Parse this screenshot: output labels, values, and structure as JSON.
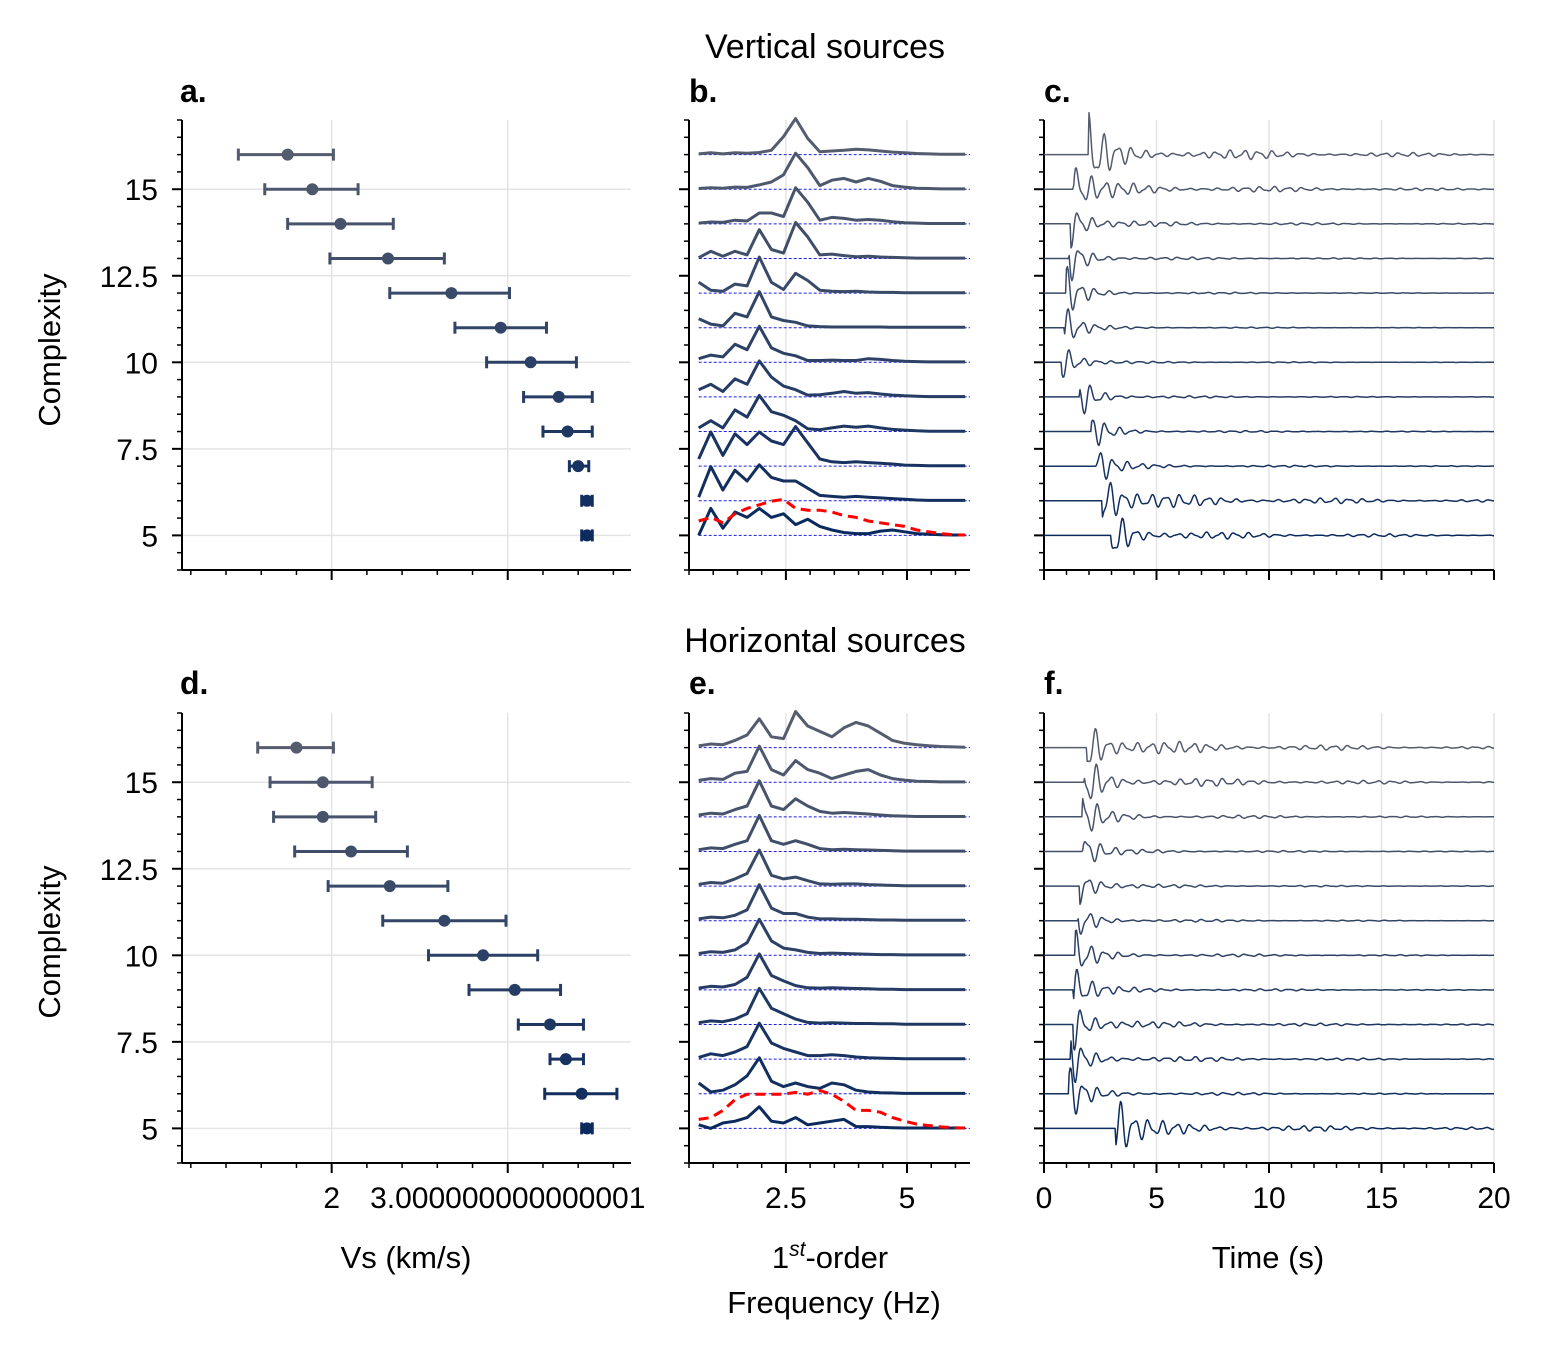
{
  "figure": {
    "top_title": "Vertical sources",
    "bottom_title": "Horizontal sources",
    "panel_labels": [
      "a.",
      "b.",
      "c.",
      "d.",
      "e.",
      "f."
    ],
    "ylabel": "Complexity",
    "xlabel_vs": "Vs (km/s)",
    "xlabel_freq_base": "1",
    "xlabel_freq_sup": "st",
    "xlabel_freq_rest": "-order",
    "xlabel_freq_line2": "Frequency (Hz)",
    "xlabel_time": "Time (s)",
    "colors": {
      "light": "#545c6e",
      "dark": "#0b2a5e",
      "reference": "#ff0000",
      "baseline": "#1f1fe0",
      "grid": "#e4e4e4"
    }
  },
  "chart_data": [
    {
      "panel": "a.",
      "type": "scatter",
      "subtype": "errorbar-horizontal",
      "xlabel": "Vs (km/s)",
      "ylabel": "Complexity",
      "xlim": [
        1.15,
        3.7
      ],
      "ylim": [
        4,
        17
      ],
      "xticks": [
        2,
        3
      ],
      "yticks": [
        5,
        7.5,
        10,
        12.5,
        15
      ],
      "grid": true,
      "y": [
        16,
        15,
        14,
        13,
        12,
        11,
        10,
        9,
        8,
        7,
        6,
        5
      ],
      "x": [
        1.75,
        1.89,
        2.05,
        2.32,
        2.68,
        2.96,
        3.13,
        3.29,
        3.34,
        3.4,
        3.45,
        3.45
      ],
      "xerr_low": [
        1.47,
        1.62,
        1.75,
        1.99,
        2.33,
        2.7,
        2.88,
        3.09,
        3.2,
        3.35,
        3.42,
        3.42
      ],
      "xerr_high": [
        2.01,
        2.15,
        2.35,
        2.64,
        3.01,
        3.22,
        3.39,
        3.48,
        3.48,
        3.46,
        3.48,
        3.48
      ]
    },
    {
      "panel": "b.",
      "type": "line",
      "subtitle": "Vertical sources",
      "xlabel": "1st-order Frequency (Hz)",
      "xlim": [
        0.5,
        6.3
      ],
      "xticks": [
        2.5,
        5
      ],
      "offsets": [
        16,
        15,
        14,
        13,
        12,
        11,
        10,
        9,
        8,
        7,
        6,
        5
      ],
      "x": [
        0.7,
        0.95,
        1.2,
        1.45,
        1.7,
        1.95,
        2.2,
        2.45,
        2.7,
        2.95,
        3.2,
        3.45,
        3.7,
        3.95,
        4.2,
        4.45,
        4.7,
        4.95,
        5.2,
        5.45,
        5.7,
        5.95,
        6.2
      ],
      "series": [
        {
          "offset": 16,
          "values": [
            0.02,
            0.05,
            0.02,
            0.05,
            0.04,
            0.06,
            0.12,
            0.5,
            1.0,
            0.45,
            0.08,
            0.1,
            0.12,
            0.15,
            0.13,
            0.1,
            0.07,
            0.05,
            0.03,
            0.02,
            0.01,
            0.01,
            0.01
          ]
        },
        {
          "offset": 15,
          "values": [
            0.02,
            0.04,
            0.03,
            0.06,
            0.05,
            0.12,
            0.2,
            0.4,
            1.0,
            0.6,
            0.1,
            0.25,
            0.3,
            0.2,
            0.3,
            0.22,
            0.1,
            0.06,
            0.03,
            0.02,
            0.01,
            0.01,
            0.01
          ]
        },
        {
          "offset": 14,
          "values": [
            0.02,
            0.05,
            0.04,
            0.1,
            0.08,
            0.3,
            0.3,
            0.2,
            1.0,
            0.6,
            0.1,
            0.18,
            0.15,
            0.1,
            0.12,
            0.1,
            0.06,
            0.03,
            0.02,
            0.01,
            0.01,
            0.01,
            0.01
          ]
        },
        {
          "offset": 13,
          "values": [
            0.02,
            0.2,
            0.06,
            0.2,
            0.1,
            0.8,
            0.25,
            0.15,
            1.0,
            0.6,
            0.1,
            0.12,
            0.08,
            0.05,
            0.06,
            0.04,
            0.03,
            0.02,
            0.01,
            0.01,
            0.01,
            0.01,
            0.01
          ]
        },
        {
          "offset": 12,
          "values": [
            0.3,
            0.08,
            0.05,
            0.25,
            0.2,
            1.0,
            0.3,
            0.1,
            0.55,
            0.35,
            0.08,
            0.05,
            0.04,
            0.05,
            0.03,
            0.02,
            0.02,
            0.01,
            0.01,
            0.01,
            0.01,
            0.01,
            0.01
          ]
        },
        {
          "offset": 11,
          "values": [
            0.25,
            0.1,
            0.05,
            0.4,
            0.3,
            1.0,
            0.3,
            0.2,
            0.15,
            0.05,
            0.03,
            0.02,
            0.02,
            0.02,
            0.02,
            0.02,
            0.01,
            0.01,
            0.01,
            0.01,
            0.01,
            0.01,
            0.01
          ]
        },
        {
          "offset": 10,
          "values": [
            0.1,
            0.2,
            0.15,
            0.5,
            0.35,
            1.0,
            0.4,
            0.25,
            0.18,
            0.05,
            0.05,
            0.06,
            0.05,
            0.05,
            0.1,
            0.08,
            0.05,
            0.03,
            0.02,
            0.01,
            0.01,
            0.01,
            0.01
          ]
        },
        {
          "offset": 9,
          "values": [
            0.2,
            0.35,
            0.15,
            0.5,
            0.35,
            1.0,
            0.55,
            0.3,
            0.2,
            0.05,
            0.06,
            0.1,
            0.15,
            0.1,
            0.12,
            0.08,
            0.05,
            0.03,
            0.02,
            0.01,
            0.01,
            0.01,
            0.01
          ]
        },
        {
          "offset": 8,
          "values": [
            0.1,
            0.3,
            0.1,
            0.6,
            0.4,
            1.0,
            0.55,
            0.45,
            0.3,
            0.08,
            0.05,
            0.1,
            0.15,
            0.12,
            0.15,
            0.1,
            0.06,
            0.04,
            0.02,
            0.01,
            0.01,
            0.01,
            0.01
          ]
        },
        {
          "offset": 7,
          "values": [
            0.2,
            0.95,
            0.3,
            0.9,
            0.6,
            0.95,
            0.7,
            0.6,
            1.1,
            0.65,
            0.2,
            0.12,
            0.1,
            0.12,
            0.1,
            0.08,
            0.06,
            0.03,
            0.02,
            0.01,
            0.01,
            0.01,
            0.01
          ]
        },
        {
          "offset": 6,
          "values": [
            0.1,
            0.95,
            0.3,
            0.85,
            0.55,
            1.0,
            0.65,
            0.55,
            0.55,
            0.35,
            0.15,
            0.12,
            0.1,
            0.12,
            0.1,
            0.08,
            0.06,
            0.04,
            0.02,
            0.01,
            0.01,
            0.01,
            0.01
          ]
        },
        {
          "offset": 5,
          "values": [
            0.0,
            0.75,
            0.2,
            0.65,
            0.5,
            0.75,
            0.5,
            0.6,
            0.3,
            0.45,
            0.25,
            0.15,
            0.08,
            0.05,
            0.05,
            0.12,
            0.15,
            0.1,
            0.05,
            0.03,
            0.02,
            0.01,
            0.01
          ]
        }
      ],
      "reference": {
        "offset": 5,
        "values": [
          0.4,
          0.5,
          0.35,
          0.6,
          0.75,
          0.85,
          0.95,
          1.0,
          0.75,
          0.7,
          0.7,
          0.65,
          0.55,
          0.5,
          0.4,
          0.35,
          0.3,
          0.25,
          0.15,
          0.1,
          0.05,
          0.02,
          0.01
        ]
      }
    },
    {
      "panel": "c.",
      "type": "line",
      "xlim": [
        0,
        20
      ],
      "xticks": [
        0,
        5,
        10,
        15,
        20
      ],
      "offsets": [
        16,
        15,
        14,
        13,
        12,
        11,
        10,
        9,
        8,
        7,
        6,
        5
      ],
      "onset_s": [
        2.0,
        1.3,
        1.2,
        1.1,
        1.0,
        0.9,
        0.8,
        1.6,
        2.1,
        2.3,
        2.6,
        3.0
      ],
      "peak_amplitude": [
        1.0,
        0.8,
        0.7,
        0.8,
        0.8,
        0.7,
        0.6,
        0.7,
        0.6,
        0.7,
        1.0,
        1.0
      ],
      "coda_amplitude": [
        0.35,
        0.25,
        0.12,
        0.08,
        0.06,
        0.05,
        0.05,
        0.06,
        0.07,
        0.08,
        0.3,
        0.2
      ]
    },
    {
      "panel": "d.",
      "type": "scatter",
      "subtype": "errorbar-horizontal",
      "xlabel": "Vs (km/s)",
      "ylabel": "Complexity",
      "xlim": [
        1.15,
        3.7
      ],
      "ylim": [
        4,
        17
      ],
      "xticks": [
        2,
        3
      ],
      "yticks": [
        5,
        7.5,
        10,
        12.5,
        15
      ],
      "grid": true,
      "y": [
        16,
        15,
        14,
        13,
        12,
        11,
        10,
        9,
        8,
        7,
        6,
        5
      ],
      "x": [
        1.8,
        1.95,
        1.95,
        2.11,
        2.33,
        2.64,
        2.86,
        3.04,
        3.24,
        3.33,
        3.42,
        3.45
      ],
      "xerr_low": [
        1.58,
        1.65,
        1.67,
        1.79,
        1.98,
        2.29,
        2.55,
        2.78,
        3.06,
        3.24,
        3.21,
        3.42
      ],
      "xerr_high": [
        2.01,
        2.23,
        2.25,
        2.43,
        2.66,
        2.99,
        3.17,
        3.3,
        3.43,
        3.43,
        3.62,
        3.48
      ]
    },
    {
      "panel": "e.",
      "type": "line",
      "subtitle": "Horizontal sources",
      "xlabel": "1st-order Frequency (Hz)",
      "xlim": [
        0.5,
        6.3
      ],
      "xticks": [
        2.5,
        5
      ],
      "offsets": [
        16,
        15,
        14,
        13,
        12,
        11,
        10,
        9,
        8,
        7,
        6,
        5
      ],
      "x": [
        0.7,
        0.95,
        1.2,
        1.45,
        1.7,
        1.95,
        2.2,
        2.45,
        2.7,
        2.95,
        3.2,
        3.45,
        3.7,
        3.95,
        4.2,
        4.45,
        4.7,
        4.95,
        5.2,
        5.45,
        5.7,
        5.95,
        6.2
      ],
      "series": [
        {
          "offset": 16,
          "values": [
            0.05,
            0.1,
            0.08,
            0.2,
            0.35,
            0.8,
            0.3,
            0.25,
            1.0,
            0.6,
            0.45,
            0.3,
            0.55,
            0.7,
            0.6,
            0.4,
            0.2,
            0.12,
            0.08,
            0.05,
            0.03,
            0.02,
            0.01
          ]
        },
        {
          "offset": 15,
          "values": [
            0.05,
            0.1,
            0.08,
            0.25,
            0.3,
            1.0,
            0.35,
            0.2,
            0.6,
            0.35,
            0.25,
            0.1,
            0.2,
            0.3,
            0.35,
            0.2,
            0.1,
            0.06,
            0.03,
            0.02,
            0.01,
            0.01,
            0.01
          ]
        },
        {
          "offset": 14,
          "values": [
            0.05,
            0.1,
            0.08,
            0.2,
            0.3,
            1.0,
            0.3,
            0.2,
            0.5,
            0.3,
            0.15,
            0.1,
            0.12,
            0.1,
            0.08,
            0.05,
            0.03,
            0.02,
            0.01,
            0.01,
            0.01,
            0.01,
            0.01
          ]
        },
        {
          "offset": 13,
          "values": [
            0.05,
            0.1,
            0.08,
            0.2,
            0.3,
            1.0,
            0.3,
            0.2,
            0.3,
            0.2,
            0.08,
            0.05,
            0.06,
            0.05,
            0.04,
            0.03,
            0.02,
            0.01,
            0.01,
            0.01,
            0.01,
            0.01,
            0.01
          ]
        },
        {
          "offset": 12,
          "values": [
            0.05,
            0.1,
            0.08,
            0.2,
            0.35,
            1.0,
            0.3,
            0.2,
            0.25,
            0.15,
            0.06,
            0.05,
            0.06,
            0.06,
            0.04,
            0.03,
            0.02,
            0.01,
            0.01,
            0.01,
            0.01,
            0.01,
            0.01
          ]
        },
        {
          "offset": 11,
          "values": [
            0.05,
            0.1,
            0.08,
            0.15,
            0.3,
            1.0,
            0.35,
            0.2,
            0.2,
            0.1,
            0.05,
            0.05,
            0.04,
            0.04,
            0.03,
            0.02,
            0.02,
            0.01,
            0.01,
            0.01,
            0.01,
            0.01,
            0.01
          ]
        },
        {
          "offset": 10,
          "values": [
            0.05,
            0.1,
            0.08,
            0.15,
            0.35,
            1.0,
            0.4,
            0.2,
            0.15,
            0.08,
            0.05,
            0.06,
            0.05,
            0.04,
            0.03,
            0.02,
            0.02,
            0.01,
            0.01,
            0.01,
            0.01,
            0.01,
            0.01
          ]
        },
        {
          "offset": 9,
          "values": [
            0.05,
            0.1,
            0.08,
            0.15,
            0.35,
            1.0,
            0.4,
            0.25,
            0.12,
            0.06,
            0.05,
            0.06,
            0.05,
            0.04,
            0.03,
            0.02,
            0.02,
            0.01,
            0.01,
            0.01,
            0.01,
            0.01,
            0.01
          ]
        },
        {
          "offset": 8,
          "values": [
            0.05,
            0.1,
            0.08,
            0.15,
            0.3,
            1.0,
            0.45,
            0.3,
            0.15,
            0.06,
            0.04,
            0.05,
            0.04,
            0.03,
            0.03,
            0.02,
            0.02,
            0.01,
            0.01,
            0.01,
            0.01,
            0.01,
            0.01
          ]
        },
        {
          "offset": 7,
          "values": [
            0.05,
            0.15,
            0.1,
            0.2,
            0.35,
            1.0,
            0.45,
            0.3,
            0.2,
            0.1,
            0.1,
            0.12,
            0.1,
            0.06,
            0.04,
            0.03,
            0.02,
            0.01,
            0.01,
            0.01,
            0.01,
            0.01,
            0.01
          ]
        },
        {
          "offset": 6,
          "values": [
            0.3,
            0.05,
            0.1,
            0.25,
            0.5,
            1.0,
            0.35,
            0.2,
            0.3,
            0.2,
            0.15,
            0.3,
            0.25,
            0.1,
            0.05,
            0.03,
            0.02,
            0.01,
            0.01,
            0.01,
            0.01,
            0.01,
            0.01
          ]
        },
        {
          "offset": 5,
          "values": [
            0.1,
            0.0,
            0.15,
            0.2,
            0.3,
            0.6,
            0.2,
            0.15,
            0.3,
            0.1,
            0.15,
            0.2,
            0.25,
            0.05,
            0.05,
            0.03,
            0.02,
            0.01,
            0.01,
            0.01,
            0.01,
            0.01,
            0.01
          ]
        }
      ],
      "reference": {
        "offset": 5,
        "values": [
          0.25,
          0.3,
          0.5,
          0.8,
          0.95,
          0.95,
          0.95,
          0.95,
          1.0,
          0.95,
          1.05,
          0.95,
          0.75,
          0.5,
          0.5,
          0.45,
          0.3,
          0.2,
          0.12,
          0.08,
          0.04,
          0.02,
          0.01
        ]
      }
    },
    {
      "panel": "f.",
      "type": "line",
      "xlabel": "Time (s)",
      "xlim": [
        0,
        20
      ],
      "xticks": [
        0,
        5,
        10,
        15,
        20
      ],
      "offsets": [
        16,
        15,
        14,
        13,
        12,
        11,
        10,
        9,
        8,
        7,
        6,
        5
      ],
      "onset_s": [
        1.9,
        1.8,
        1.7,
        1.7,
        1.6,
        1.5,
        1.4,
        1.3,
        1.3,
        1.2,
        1.1,
        3.2
      ],
      "peak_amplitude": [
        1.0,
        0.9,
        0.8,
        0.7,
        0.6,
        0.6,
        0.7,
        0.8,
        0.8,
        0.8,
        0.9,
        1.0
      ],
      "coda_amplitude": [
        0.3,
        0.25,
        0.12,
        0.08,
        0.08,
        0.08,
        0.1,
        0.1,
        0.15,
        0.15,
        0.1,
        0.25
      ]
    }
  ]
}
